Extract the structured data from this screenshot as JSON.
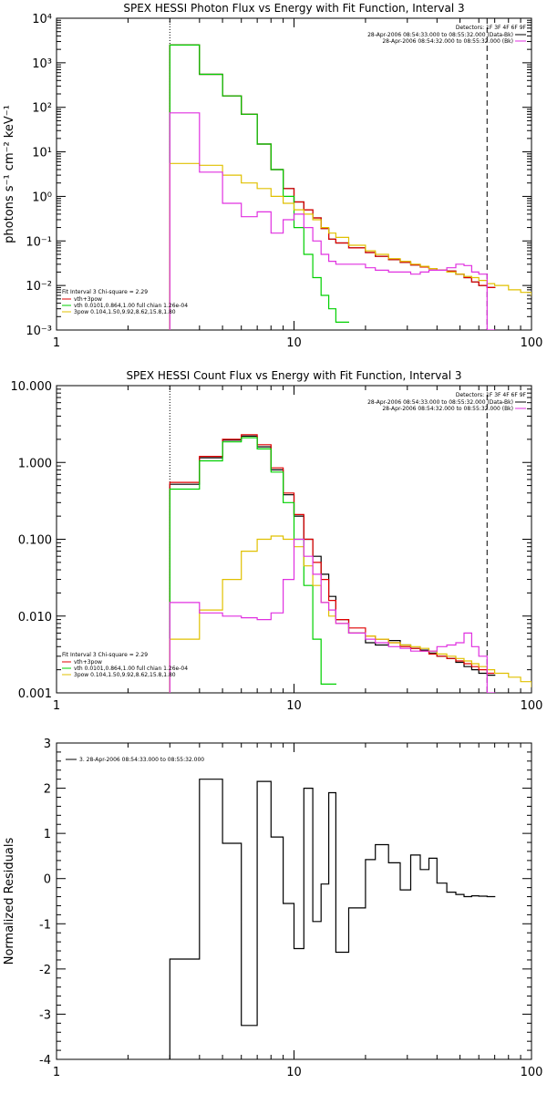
{
  "chart_data": [
    {
      "type": "line",
      "title": "SPEX HESSI Photon Flux vs Energy with Fit Function, Interval 3",
      "xlabel": "",
      "ylabel": "photons s⁻¹ cm⁻² keV⁻¹",
      "xscale": "log",
      "yscale": "log",
      "xlim": [
        1,
        100
      ],
      "ylim": [
        0.001,
        10000
      ],
      "x_ticks": [
        "1",
        "10",
        "100"
      ],
      "y_ticks": [
        "10⁻³",
        "10⁻²",
        "10⁻¹",
        "10⁰",
        "10¹",
        "10²",
        "10³",
        "10⁴"
      ],
      "fit_range_start": 3,
      "fit_range_end": 65,
      "legend_right": {
        "placement": "top-right",
        "header": "Detectors: 1F 3F 4F 6F 9F",
        "entries": [
          {
            "text": "28-Apr-2006 08:54:33.000 to 08:55:32.000 (Data-Bk)",
            "color": "#000000"
          },
          {
            "text": "28-Apr-2006 08:54:32.000 to 08:55:32.000 (Bk)",
            "color": "#e030e0"
          }
        ]
      },
      "legend_left": {
        "placement": "bottom-left",
        "header": "Fit Interval  3    Chi-square = 2.29",
        "entries": [
          {
            "text": "vth+3pow",
            "color": "#e00000"
          },
          {
            "text": "vth 0.0101,0.864,1.00  full chian 1.26e-04",
            "color": "#00d000"
          },
          {
            "text": "3pow 0.104,1.50,9.92,8.62,15.8,1.80",
            "color": "#e0c000"
          }
        ]
      },
      "series": [
        {
          "color": "#000000",
          "x": [
            3,
            4,
            5,
            6,
            7,
            8,
            9,
            10,
            11,
            12,
            13,
            14,
            15,
            17,
            20,
            22,
            25,
            28,
            31,
            34,
            37,
            40,
            44,
            48,
            52,
            56,
            60,
            65
          ],
          "values": [
            2500,
            550,
            180,
            70,
            15,
            4.0,
            1.5,
            0.75,
            0.5,
            0.33,
            0.19,
            0.11,
            0.09,
            0.07,
            0.055,
            0.045,
            0.038,
            0.033,
            0.029,
            0.026,
            0.024,
            0.022,
            0.021,
            0.018,
            0.015,
            0.012,
            0.01,
            0.009
          ]
        },
        {
          "color": "#e00000",
          "x": [
            3,
            4,
            5,
            6,
            7,
            8,
            9,
            10,
            11,
            12,
            13,
            14,
            15,
            17,
            20,
            22,
            25,
            28,
            31,
            34,
            37,
            40,
            44,
            48,
            52,
            56,
            60,
            65
          ],
          "values": [
            2500,
            550,
            180,
            70,
            15,
            4.0,
            1.5,
            0.75,
            0.5,
            0.33,
            0.19,
            0.11,
            0.09,
            0.07,
            0.055,
            0.045,
            0.038,
            0.033,
            0.029,
            0.026,
            0.024,
            0.022,
            0.021,
            0.018,
            0.015,
            0.012,
            0.01,
            0.009
          ]
        },
        {
          "color": "#00d000",
          "x": [
            3,
            4,
            5,
            6,
            7,
            8,
            9,
            10,
            11,
            12,
            13,
            14,
            15,
            16
          ],
          "values": [
            2500,
            550,
            180,
            70,
            15,
            4.0,
            1.0,
            0.2,
            0.05,
            0.015,
            0.006,
            0.003,
            0.0015,
            0.0015
          ]
        },
        {
          "color": "#e0c000",
          "x": [
            3,
            4,
            5,
            6,
            7,
            8,
            9,
            10,
            11,
            12,
            13,
            14,
            15,
            17,
            20,
            22,
            25,
            28,
            31,
            34,
            37,
            40,
            44,
            48,
            52,
            56,
            60,
            65,
            70,
            80,
            90,
            100
          ],
          "values": [
            5.5,
            5.0,
            3.0,
            2.0,
            1.5,
            1.0,
            0.7,
            0.5,
            0.4,
            0.3,
            0.2,
            0.15,
            0.12,
            0.08,
            0.06,
            0.05,
            0.04,
            0.035,
            0.03,
            0.027,
            0.024,
            0.022,
            0.02,
            0.018,
            0.016,
            0.015,
            0.013,
            0.011,
            0.01,
            0.008,
            0.007,
            0.006
          ]
        },
        {
          "color": "#e030e0",
          "x": [
            3,
            4,
            5,
            6,
            7,
            8,
            9,
            10,
            11,
            12,
            13,
            14,
            15,
            17,
            20,
            22,
            25,
            28,
            31,
            34,
            37,
            40,
            44,
            48,
            52,
            56,
            60,
            65
          ],
          "values": [
            75,
            3.5,
            0.7,
            0.35,
            0.45,
            0.15,
            0.3,
            0.4,
            0.2,
            0.1,
            0.05,
            0.035,
            0.03,
            0.03,
            0.025,
            0.022,
            0.02,
            0.02,
            0.018,
            0.02,
            0.022,
            0.022,
            0.025,
            0.03,
            0.028,
            0.02,
            0.018,
            0.001
          ]
        }
      ]
    },
    {
      "type": "line",
      "title": "SPEX HESSI Count Flux vs Energy with Fit Function, Interval 3",
      "xlabel": "",
      "ylabel": "",
      "xscale": "log",
      "yscale": "log",
      "xlim": [
        1,
        100
      ],
      "ylim": [
        0.001,
        10
      ],
      "x_ticks": [
        "1",
        "10",
        "100"
      ],
      "y_ticks": [
        "0.001",
        "0.010",
        "0.100",
        "1.000",
        "10.000"
      ],
      "fit_range_start": 3,
      "fit_range_end": 65,
      "legend_right": {
        "placement": "top-right",
        "header": "Detectors: 1F 3F 4F 6F 9F",
        "entries": [
          {
            "text": "28-Apr-2006 08:54:33.000 to 08:55:32.000 (Data-Bk)",
            "color": "#000000"
          },
          {
            "text": "28-Apr-2006 08:54:32.000 to 08:55:32.000 (Bk)",
            "color": "#e030e0"
          }
        ]
      },
      "legend_left": {
        "placement": "bottom-left",
        "header": "Fit Interval  3    Chi-square = 2.29",
        "entries": [
          {
            "text": "vth+3pow",
            "color": "#e00000"
          },
          {
            "text": "vth 0.0101,0.864,1.00  full chian 1.26e-04",
            "color": "#00d000"
          },
          {
            "text": "3pow 0.104,1.50,9.92,8.62,15.8,1.80",
            "color": "#e0c000"
          }
        ]
      },
      "series": [
        {
          "color": "#000000",
          "x": [
            3,
            4,
            5,
            6,
            7,
            8,
            9,
            10,
            11,
            12,
            13,
            14,
            15,
            17,
            20,
            22,
            25,
            28,
            31,
            34,
            37,
            40,
            44,
            48,
            52,
            56,
            60,
            65
          ],
          "values": [
            0.52,
            1.15,
            1.95,
            2.2,
            1.6,
            0.8,
            0.38,
            0.2,
            0.1,
            0.06,
            0.035,
            0.018,
            0.009,
            0.006,
            0.0045,
            0.0042,
            0.0048,
            0.0042,
            0.0038,
            0.0036,
            0.0033,
            0.003,
            0.0028,
            0.0025,
            0.0022,
            0.002,
            0.0018,
            0.0017
          ]
        },
        {
          "color": "#e00000",
          "x": [
            3,
            4,
            5,
            6,
            7,
            8,
            9,
            10,
            11,
            12,
            13,
            14,
            15,
            17,
            20,
            22,
            25,
            28,
            31,
            34,
            37,
            40,
            44,
            48,
            52,
            56,
            60,
            65
          ],
          "values": [
            0.55,
            1.2,
            2.0,
            2.3,
            1.7,
            0.85,
            0.4,
            0.21,
            0.1,
            0.05,
            0.03,
            0.016,
            0.009,
            0.007,
            0.0055,
            0.005,
            0.0045,
            0.004,
            0.0038,
            0.0035,
            0.0032,
            0.003,
            0.0028,
            0.0026,
            0.0024,
            0.0022,
            0.002,
            0.0018
          ]
        },
        {
          "color": "#00d000",
          "x": [
            3,
            4,
            5,
            6,
            7,
            8,
            9,
            10,
            11,
            12,
            13,
            14
          ],
          "values": [
            0.45,
            1.05,
            1.85,
            2.1,
            1.5,
            0.75,
            0.3,
            0.1,
            0.025,
            0.005,
            0.0013,
            0.0013
          ]
        },
        {
          "color": "#e0c000",
          "x": [
            3,
            4,
            5,
            6,
            7,
            8,
            9,
            10,
            11,
            12,
            13,
            14,
            15,
            17,
            20,
            22,
            25,
            28,
            31,
            34,
            37,
            40,
            44,
            48,
            52,
            56,
            60,
            65,
            70,
            80,
            90,
            100
          ],
          "values": [
            0.005,
            0.012,
            0.03,
            0.07,
            0.1,
            0.11,
            0.1,
            0.08,
            0.045,
            0.025,
            0.015,
            0.01,
            0.008,
            0.006,
            0.0055,
            0.005,
            0.0045,
            0.0042,
            0.004,
            0.0038,
            0.0035,
            0.0032,
            0.003,
            0.0028,
            0.0026,
            0.0024,
            0.0022,
            0.002,
            0.0018,
            0.0016,
            0.0014,
            0.0012
          ]
        },
        {
          "color": "#e030e0",
          "x": [
            3,
            4,
            5,
            6,
            7,
            8,
            9,
            10,
            11,
            12,
            13,
            14,
            15,
            17,
            20,
            22,
            25,
            28,
            31,
            34,
            37,
            40,
            44,
            48,
            52,
            56,
            60,
            65
          ],
          "values": [
            0.015,
            0.011,
            0.01,
            0.0095,
            0.009,
            0.011,
            0.03,
            0.1,
            0.06,
            0.035,
            0.015,
            0.012,
            0.008,
            0.006,
            0.005,
            0.0045,
            0.004,
            0.0038,
            0.0035,
            0.0035,
            0.0035,
            0.004,
            0.0042,
            0.0045,
            0.006,
            0.004,
            0.003,
            0.001
          ]
        }
      ]
    },
    {
      "type": "line",
      "title": "",
      "xlabel": "",
      "ylabel": "Normalized Residuals",
      "xscale": "log",
      "yscale": "linear",
      "xlim": [
        1,
        100
      ],
      "ylim": [
        -4,
        3
      ],
      "x_ticks": [
        "1",
        "10",
        "100"
      ],
      "y_ticks": [
        "-4",
        "-3",
        "-2",
        "-1",
        "0",
        "1",
        "2",
        "3"
      ],
      "legend": {
        "placement": "top-left",
        "entries": [
          {
            "text": "3. 28-Apr-2006 08:54:33.000 to 08:55:32.000",
            "color": "#000000"
          }
        ]
      },
      "series": [
        {
          "color": "#000000",
          "x": [
            3,
            4,
            5,
            6,
            7,
            8,
            9,
            10,
            11,
            12,
            13,
            14,
            15,
            17,
            20,
            22,
            25,
            28,
            31,
            34,
            37,
            40,
            44,
            48,
            52,
            56,
            60,
            65
          ],
          "values": [
            -1.78,
            2.2,
            0.78,
            -3.25,
            2.15,
            0.92,
            -0.55,
            -1.55,
            2.0,
            -0.95,
            -0.12,
            1.9,
            -1.63,
            -0.65,
            0.42,
            0.75,
            0.35,
            -0.25,
            0.52,
            0.2,
            0.45,
            -0.1,
            -0.3,
            -0.35,
            -0.4,
            -0.38,
            -0.39,
            -0.4
          ]
        }
      ]
    }
  ]
}
